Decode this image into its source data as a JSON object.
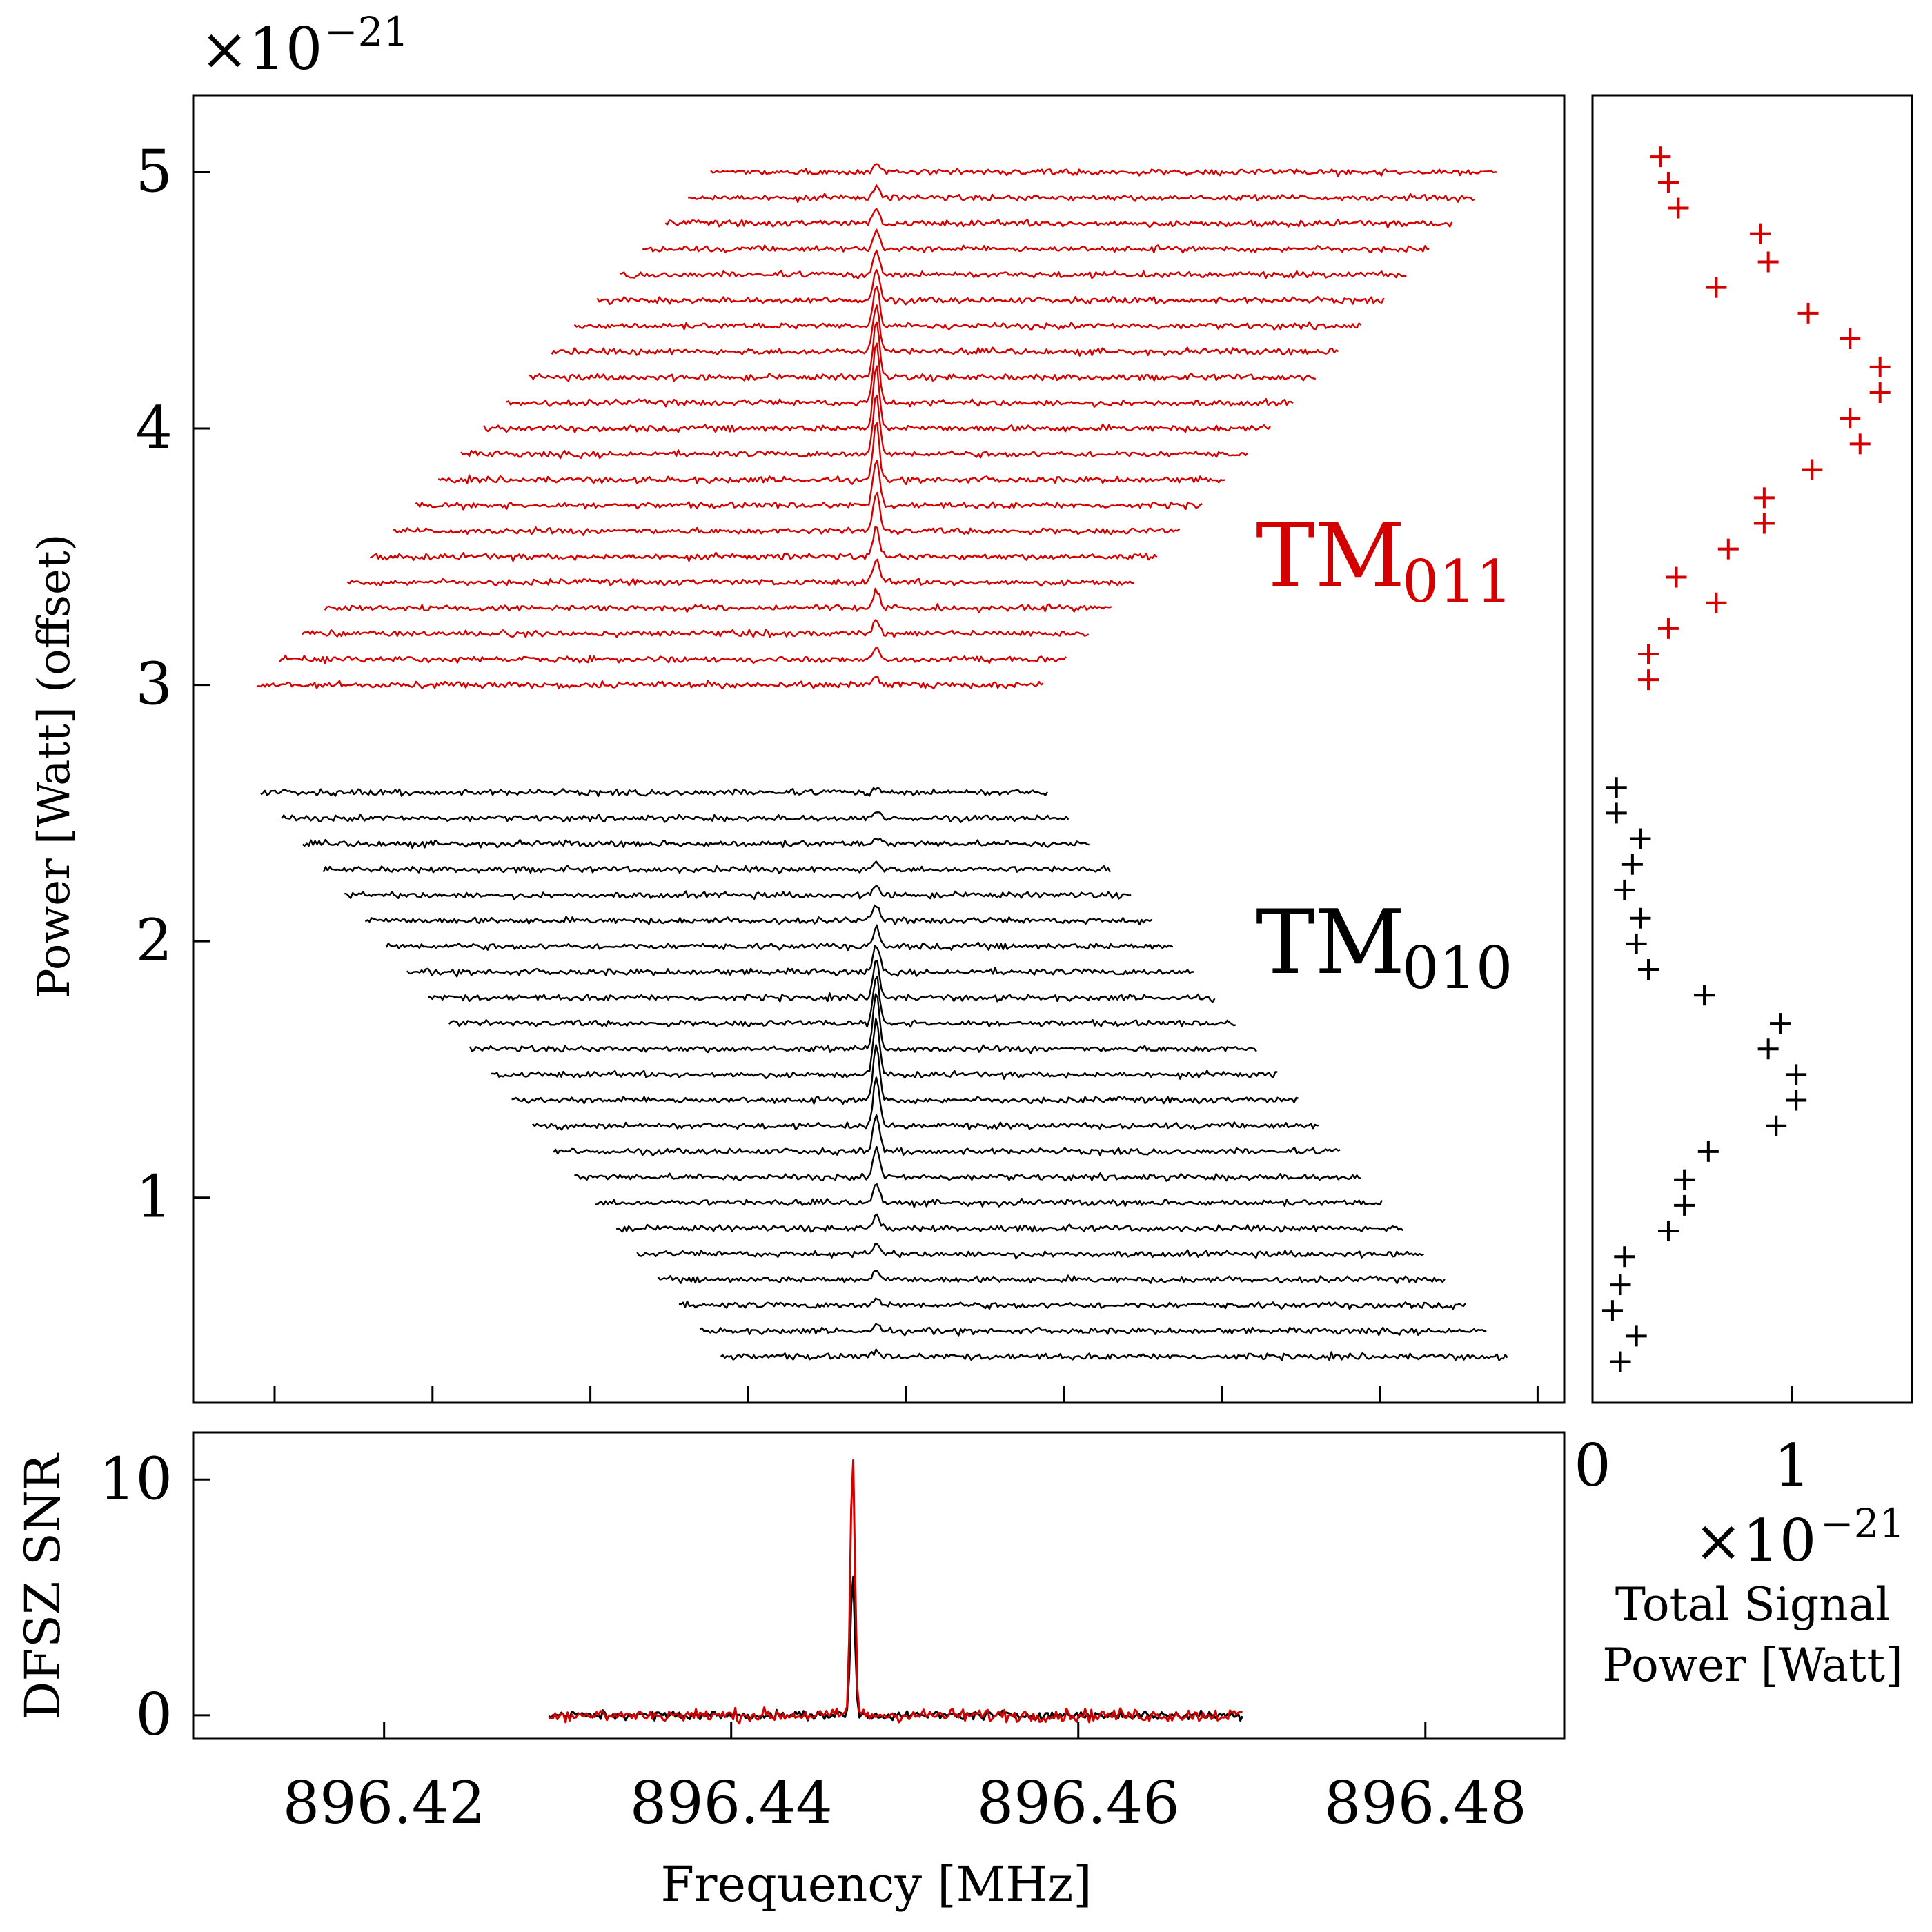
{
  "chart_data": [
    {
      "id": "waterfall",
      "type": "line",
      "title": "",
      "xlabel": "",
      "ylabel": "Power [Watt] (offset)",
      "yexponent": "×10",
      "yexponent_power": "−21",
      "yticks": [
        "1",
        "2",
        "3",
        "4",
        "5"
      ],
      "ylim": [
        0.2,
        5.3
      ],
      "annotations": [
        {
          "text": "TM",
          "subscript": "011",
          "color": "#d40000",
          "series": "TM011"
        },
        {
          "text": "TM",
          "subscript": "010",
          "color": "#000000",
          "series": "TM010"
        }
      ],
      "series": [
        {
          "name": "TM011",
          "color": "#d40000",
          "count": 21,
          "y_offset_start": 3.0,
          "y_offset_step": 0.1,
          "peak_frequency_MHz": 896.447,
          "span_MHz": 0.1
        },
        {
          "name": "TM010",
          "color": "#000000",
          "count": 23,
          "y_offset_start": 0.38,
          "y_offset_step": 0.1,
          "peak_frequency_MHz": 896.447,
          "span_MHz": 0.1
        }
      ]
    },
    {
      "id": "total_power",
      "type": "scatter",
      "xlabel_line1": "Total Signal",
      "xlabel_line2": "Power [Watt]",
      "xexponent": "×10",
      "xexponent_power": "−21",
      "xticks": [
        "0",
        "1"
      ],
      "xlim": [
        0,
        1.6
      ],
      "series": [
        {
          "name": "TM011",
          "color": "#d40000",
          "marker": "+",
          "x": [
            0.28,
            0.28,
            0.38,
            0.42,
            0.62,
            0.68,
            0.86,
            0.86,
            1.1,
            1.34,
            1.29,
            1.44,
            1.44,
            1.29,
            1.08,
            0.62,
            0.88,
            0.84,
            0.43,
            0.38,
            0.34
          ],
          "y": [
            3.02,
            3.12,
            3.22,
            3.42,
            3.32,
            3.53,
            3.63,
            3.73,
            3.84,
            3.94,
            4.04,
            4.14,
            4.24,
            4.35,
            4.45,
            4.55,
            4.65,
            4.76,
            4.86,
            4.96,
            5.06
          ]
        },
        {
          "name": "TM010",
          "color": "#000000",
          "marker": "+",
          "x": [
            0.14,
            0.22,
            0.1,
            0.14,
            0.16,
            0.38,
            0.46,
            0.46,
            0.58,
            1.02,
            0.92,
            1.02,
            0.88,
            0.94,
            0.56,
            0.28,
            0.22,
            0.24,
            0.16,
            0.2,
            0.24,
            0.12,
            0.12
          ],
          "y": [
            0.36,
            0.46,
            0.56,
            0.66,
            0.77,
            0.87,
            0.97,
            1.07,
            1.18,
            1.38,
            1.28,
            1.48,
            1.58,
            1.68,
            1.79,
            1.89,
            1.99,
            2.09,
            2.2,
            2.3,
            2.4,
            2.5,
            2.6
          ]
        }
      ]
    },
    {
      "id": "snr",
      "type": "line",
      "xlabel": "Frequency [MHz]",
      "ylabel": "DFSZ SNR",
      "xticks": [
        "896.42",
        "896.44",
        "896.46",
        "896.48"
      ],
      "yticks": [
        "0",
        "10"
      ],
      "xlim": [
        896.409,
        896.488
      ],
      "ylim": [
        -1,
        12
      ],
      "series": [
        {
          "name": "TM010",
          "color": "#000000",
          "peak": 6.0,
          "x_range": [
            896.4295,
            896.4695
          ],
          "peak_x": 896.447
        },
        {
          "name": "TM011",
          "color": "#d40000",
          "peak": 11.2,
          "x_range": [
            896.4295,
            896.4695
          ],
          "peak_x": 896.447
        }
      ]
    }
  ]
}
